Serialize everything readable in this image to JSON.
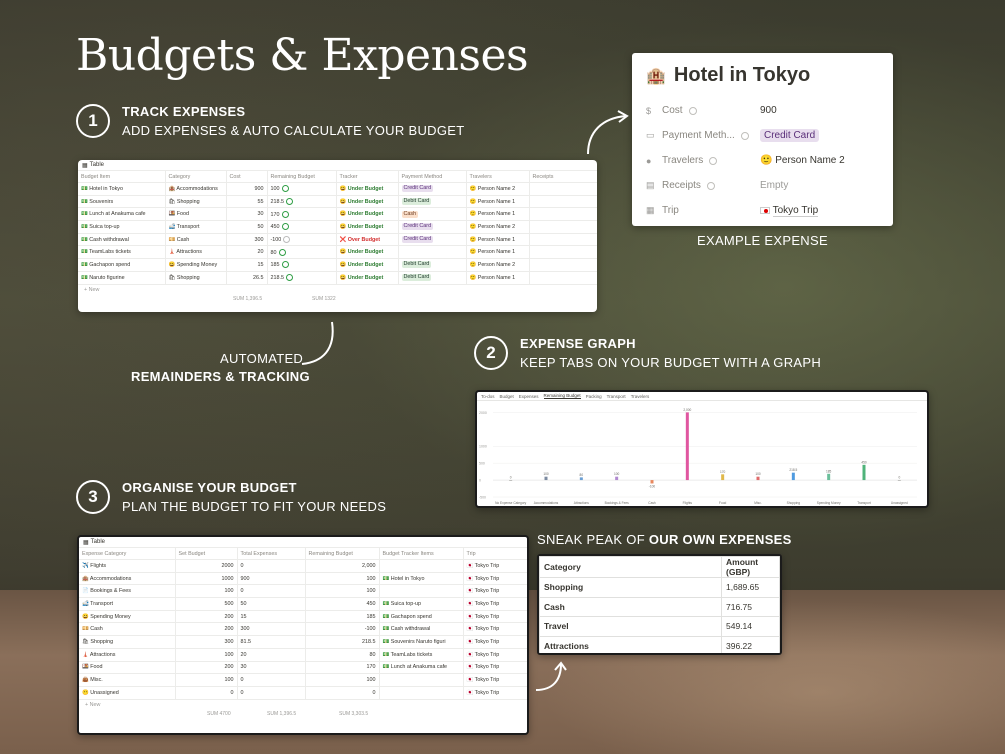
{
  "heading": "Budgets & Expenses",
  "steps": [
    {
      "number": "1",
      "title": "TRACK EXPENSES",
      "subtitle": "ADD EXPENSES & AUTO CALCULATE YOUR BUDGET"
    },
    {
      "number": "2",
      "title": "EXPENSE GRAPH",
      "subtitle": "KEEP TABS ON YOUR BUDGET WITH A GRAPH"
    },
    {
      "number": "3",
      "title": "ORGANISE YOUR BUDGET",
      "subtitle": "PLAN THE BUDGET TO FIT YOUR NEEDS"
    }
  ],
  "captions": {
    "automated_line1": "AUTOMATED",
    "automated_line2": "REMAINDERS & TRACKING",
    "example_expense": "EXAMPLE EXPENSE",
    "sneak_peak_prefix": "SNEAK PEAK OF ",
    "sneak_peak_bold": "OUR OWN EXPENSES"
  },
  "expenses_table": {
    "view_label": "Table",
    "columns": [
      "Budget Item",
      "Category",
      "Cost",
      "Remaining Budget",
      "Tracker",
      "Payment Method",
      "Travelers",
      "Receipts"
    ],
    "rows": [
      {
        "item": "Hotel in Tokyo",
        "category": "Accommodations",
        "cost": "900",
        "remaining": "100",
        "tracker": "Under Budget",
        "payment": "Credit Card",
        "traveler": "Person Name 2"
      },
      {
        "item": "Souvenirs",
        "category": "Shopping",
        "cost": "55",
        "remaining": "218.5",
        "tracker": "Under Budget",
        "payment": "Debit Card",
        "traveler": "Person Name 1"
      },
      {
        "item": "Lunch at Anakuma cafe",
        "category": "Food",
        "cost": "30",
        "remaining": "170",
        "tracker": "Under Budget",
        "payment": "Cash",
        "traveler": "Person Name 1"
      },
      {
        "item": "Suica top-up",
        "category": "Transport",
        "cost": "50",
        "remaining": "450",
        "tracker": "Under Budget",
        "payment": "Credit Card",
        "traveler": "Person Name 2"
      },
      {
        "item": "Cash withdrawal",
        "category": "Cash",
        "cost": "300",
        "remaining": "-100",
        "tracker": "Over Budget",
        "payment": "Credit Card",
        "traveler": "Person Name 1"
      },
      {
        "item": "TeamLabs tickets",
        "category": "Attractions",
        "cost": "20",
        "remaining": "80",
        "tracker": "Under Budget",
        "payment": "",
        "traveler": "Person Name 1"
      },
      {
        "item": "Gachapon spend",
        "category": "Spending Money",
        "cost": "15",
        "remaining": "185",
        "tracker": "Under Budget",
        "payment": "Debit Card",
        "traveler": "Person Name 2"
      },
      {
        "item": "Naruto figurine",
        "category": "Shopping",
        "cost": "26.5",
        "remaining": "218.5",
        "tracker": "Under Budget",
        "payment": "Debit Card",
        "traveler": "Person Name 1"
      }
    ],
    "new_label": "+ New",
    "sum_cost": "SUM 1,396.5",
    "sum_remaining": "SUM 1322"
  },
  "hotel_card": {
    "icon": "hotel-building-icon",
    "title": "Hotel in Tokyo",
    "properties": [
      {
        "label": "Cost",
        "value": "900"
      },
      {
        "label": "Payment Meth...",
        "value": "Credit Card"
      },
      {
        "label": "Travelers",
        "value": "Person Name 2"
      },
      {
        "label": "Receipts",
        "value": "Empty"
      },
      {
        "label": "Trip",
        "value": "Tokyo Trip"
      }
    ]
  },
  "graph": {
    "tabs": [
      "To-dos",
      "Budget",
      "Expenses",
      "Remaining Budget",
      "Packing",
      "Transport",
      "Travelers"
    ],
    "active_tab": "Remaining Budget"
  },
  "chart_data": {
    "type": "bar",
    "title": "",
    "categories": [
      "No Expense Category",
      "Accommodations",
      "Attractions",
      "Bookings & Fees",
      "Cash",
      "Flights",
      "Food",
      "Misc.",
      "Shopping",
      "Spending Money",
      "Transport",
      "Unassigned"
    ],
    "values": [
      0,
      100,
      80,
      100,
      -100,
      2000,
      170,
      100,
      218.5,
      185,
      450,
      0
    ],
    "colors": [
      "#9b9a97",
      "#7c8ba1",
      "#6b9fd4",
      "#b18ad1",
      "#e8885f",
      "#e056a0",
      "#e0b84a",
      "#e06b6b",
      "#4f9be0",
      "#6bbf9b",
      "#4fb37a",
      "#9b9a97"
    ],
    "value_labels": [
      "0",
      "100",
      "80",
      "100",
      "-100",
      "2,000",
      "170",
      "100",
      "218.5",
      "185",
      "450",
      "0"
    ],
    "ylim": [
      -500,
      2100
    ],
    "yticks": [
      "2000",
      "1000",
      "500",
      "0",
      "-500"
    ]
  },
  "budget_table": {
    "view_label": "Table",
    "columns": [
      "Expense Category",
      "Set Budget",
      "Total Expenses",
      "Remaining Budget",
      "Budget Tracker Items",
      "Trip"
    ],
    "rows": [
      {
        "category": "Flights",
        "set": "2000",
        "total": "0",
        "remaining": "2,000",
        "items": "",
        "trip": "Tokyo Trip"
      },
      {
        "category": "Accommodations",
        "set": "1000",
        "total": "900",
        "remaining": "100",
        "items": "Hotel in Tokyo",
        "trip": "Tokyo Trip"
      },
      {
        "category": "Bookings & Fees",
        "set": "100",
        "total": "0",
        "remaining": "100",
        "items": "",
        "trip": "Tokyo Trip"
      },
      {
        "category": "Transport",
        "set": "500",
        "total": "50",
        "remaining": "450",
        "items": "Suica top-up",
        "trip": "Tokyo Trip"
      },
      {
        "category": "Spending Money",
        "set": "200",
        "total": "15",
        "remaining": "185",
        "items": "Gachapon spend",
        "trip": "Tokyo Trip"
      },
      {
        "category": "Cash",
        "set": "200",
        "total": "300",
        "remaining": "-100",
        "items": "Cash withdrawal",
        "trip": "Tokyo Trip"
      },
      {
        "category": "Shopping",
        "set": "300",
        "total": "81.5",
        "remaining": "218.5",
        "items": "Souvenirs   Naruto figuri",
        "trip": "Tokyo Trip"
      },
      {
        "category": "Attractions",
        "set": "100",
        "total": "20",
        "remaining": "80",
        "items": "TeamLabs tickets",
        "trip": "Tokyo Trip"
      },
      {
        "category": "Food",
        "set": "200",
        "total": "30",
        "remaining": "170",
        "items": "Lunch at Anakuma cafe",
        "trip": "Tokyo Trip"
      },
      {
        "category": "Misc.",
        "set": "100",
        "total": "0",
        "remaining": "100",
        "items": "",
        "trip": "Tokyo Trip"
      },
      {
        "category": "Unassigned",
        "set": "0",
        "total": "0",
        "remaining": "0",
        "items": "",
        "trip": "Tokyo Trip"
      }
    ],
    "new_label": "+ New",
    "sum_set": "SUM 4700",
    "sum_total": "SUM 1,396.5",
    "sum_remaining": "SUM 3,303.5"
  },
  "summary_table": {
    "header": [
      "Category",
      "Amount (GBP)"
    ],
    "rows": [
      [
        "Shopping",
        "1,689.65"
      ],
      [
        "Cash",
        "716.75"
      ],
      [
        "Travel",
        "549.14"
      ],
      [
        "Attractions",
        "396.22"
      ]
    ]
  }
}
